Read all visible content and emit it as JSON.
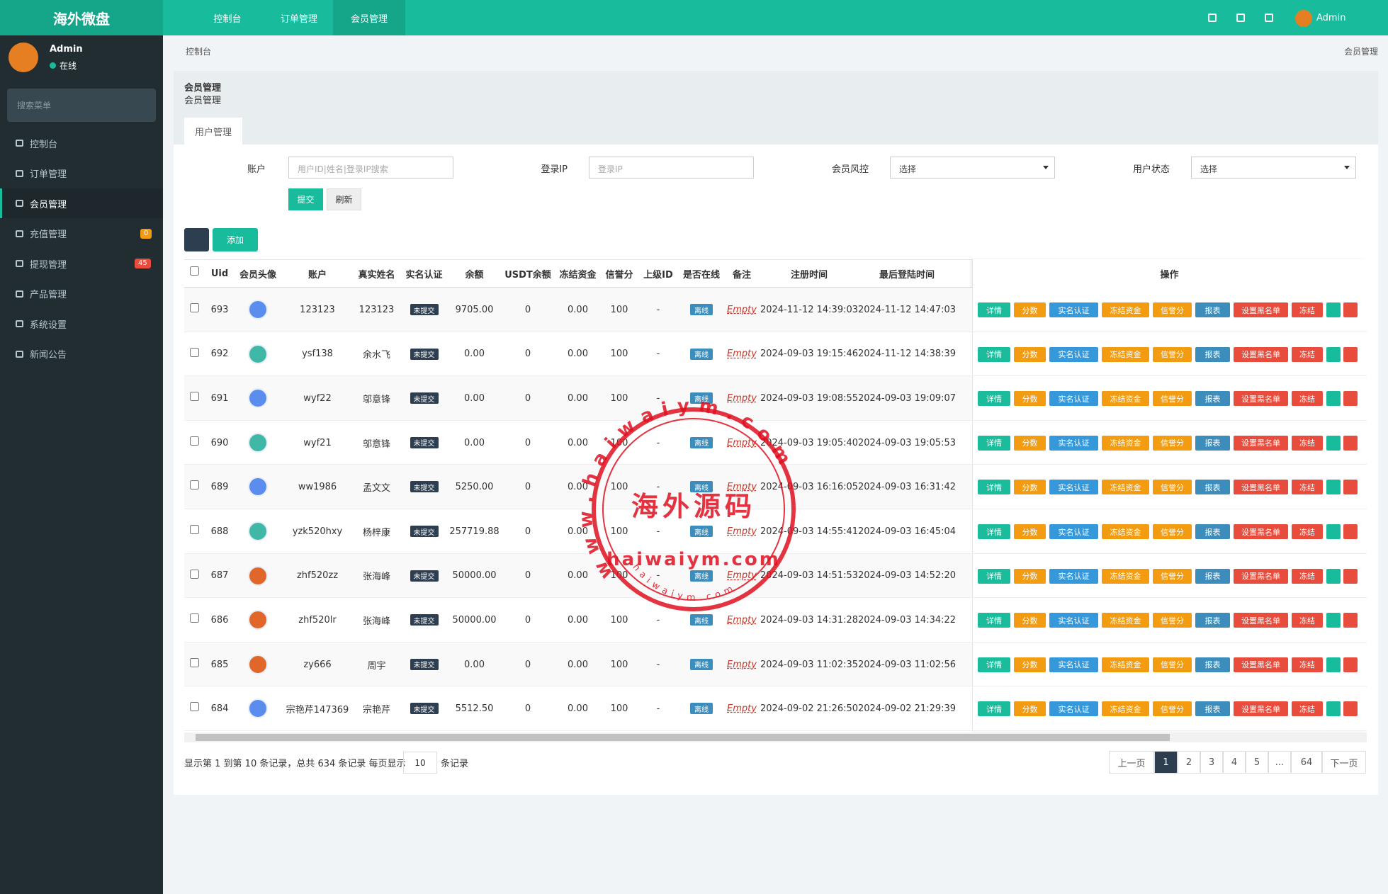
{
  "header": {
    "brand": "海外微盘",
    "nav": [
      "控制台",
      "订单管理",
      "会员管理"
    ],
    "user": "Admin"
  },
  "sidebar": {
    "user": "Admin",
    "status": "在线",
    "search": "搜索菜单",
    "menu": [
      {
        "label": "控制台"
      },
      {
        "label": "订单管理"
      },
      {
        "label": "会员管理"
      },
      {
        "label": "充值管理",
        "badge": "0"
      },
      {
        "label": "提现管理",
        "badge": "45"
      },
      {
        "label": "产品管理"
      },
      {
        "label": "系统设置"
      },
      {
        "label": "新闻公告"
      }
    ]
  },
  "breadcrumb": {
    "home": "控制台",
    "current": "会员管理"
  },
  "panel": {
    "title": "会员管理",
    "subtitle": "会员管理",
    "tab": "用户管理"
  },
  "filters": [
    {
      "label": "账户",
      "placeholder": "用户ID|姓名|登录IP搜索"
    },
    {
      "label": "登录IP",
      "placeholder": "登录IP"
    },
    {
      "label": "会员风控",
      "select": "选择"
    },
    {
      "label": "用户状态",
      "select": "选择"
    }
  ],
  "form_buttons": [
    "提交",
    "刷新"
  ],
  "toolbar": {
    "add": "添加"
  },
  "table": {
    "columns": [
      "Uid",
      "会员头像",
      "账户",
      "真实姓名",
      "实名认证",
      "余额",
      "USDT余额",
      "冻结资金",
      "信誉分",
      "上级ID",
      "是否在线",
      "备注",
      "注册时间",
      "最后登陆时间"
    ],
    "action_header": "操作",
    "actions": [
      "详情",
      "分数",
      "实名认证",
      "冻结资金",
      "信誉分",
      "报表",
      "设置黑名单",
      "冻结"
    ],
    "rows": [
      [
        "693",
        "123123",
        "123123",
        "未提交",
        "9705.00",
        "0",
        "0.00",
        "100",
        "-",
        "离线",
        "Empty",
        "2024-11-12 14:39:03",
        "2024-11-12 14:47:03"
      ],
      [
        "692",
        "ysf138",
        "余水飞",
        "未提交",
        "0.00",
        "0",
        "0.00",
        "100",
        "-",
        "离线",
        "Empty",
        "2024-09-03 19:15:46",
        "2024-11-12 14:38:39"
      ],
      [
        "691",
        "wyf22",
        "邬意锋",
        "未提交",
        "0.00",
        "0",
        "0.00",
        "100",
        "-",
        "离线",
        "Empty",
        "2024-09-03 19:08:55",
        "2024-09-03 19:09:07"
      ],
      [
        "690",
        "wyf21",
        "邬意锋",
        "未提交",
        "0.00",
        "0",
        "0.00",
        "100",
        "-",
        "离线",
        "Empty",
        "2024-09-03 19:05:40",
        "2024-09-03 19:05:53"
      ],
      [
        "689",
        "ww1986",
        "孟文文",
        "未提交",
        "5250.00",
        "0",
        "0.00",
        "100",
        "-",
        "离线",
        "Empty",
        "2024-09-03 16:16:05",
        "2024-09-03 16:31:42"
      ],
      [
        "688",
        "yzk520hxy",
        "杨梓康",
        "未提交",
        "257719.88",
        "0",
        "0.00",
        "100",
        "-",
        "离线",
        "Empty",
        "2024-09-03 14:55:41",
        "2024-09-03 16:45:04"
      ],
      [
        "687",
        "zhf520zz",
        "张海峰",
        "未提交",
        "50000.00",
        "0",
        "0.00",
        "100",
        "-",
        "离线",
        "Empty",
        "2024-09-03 14:51:53",
        "2024-09-03 14:52:20"
      ],
      [
        "686",
        "zhf520lr",
        "张海峰",
        "未提交",
        "50000.00",
        "0",
        "0.00",
        "100",
        "-",
        "离线",
        "Empty",
        "2024-09-03 14:31:28",
        "2024-09-03 14:34:22"
      ],
      [
        "685",
        "zy666",
        "周宇",
        "未提交",
        "0.00",
        "0",
        "0.00",
        "100",
        "-",
        "离线",
        "Empty",
        "2024-09-03 11:02:35",
        "2024-09-03 11:02:56"
      ],
      [
        "684",
        "宗艳芹147369",
        "宗艳芹",
        "未提交",
        "5512.50",
        "0",
        "0.00",
        "100",
        "-",
        "离线",
        "Empty",
        "2024-09-02 21:26:50",
        "2024-09-02 21:29:39"
      ]
    ]
  },
  "footer": {
    "summary": "显示第 1 到第 10 条记录，总共 634 条记录 每页显示",
    "page_size": "10",
    "suffix": "条记录"
  },
  "pagination": [
    "上一页",
    "1",
    "2",
    "3",
    "4",
    "5",
    "...",
    "64",
    "下一页"
  ],
  "watermark": {
    "ring": "www.haiwaiym.com",
    "center": "海外源码",
    "domain": "haiwaiym.com",
    "small": "haiwaiym.com"
  }
}
